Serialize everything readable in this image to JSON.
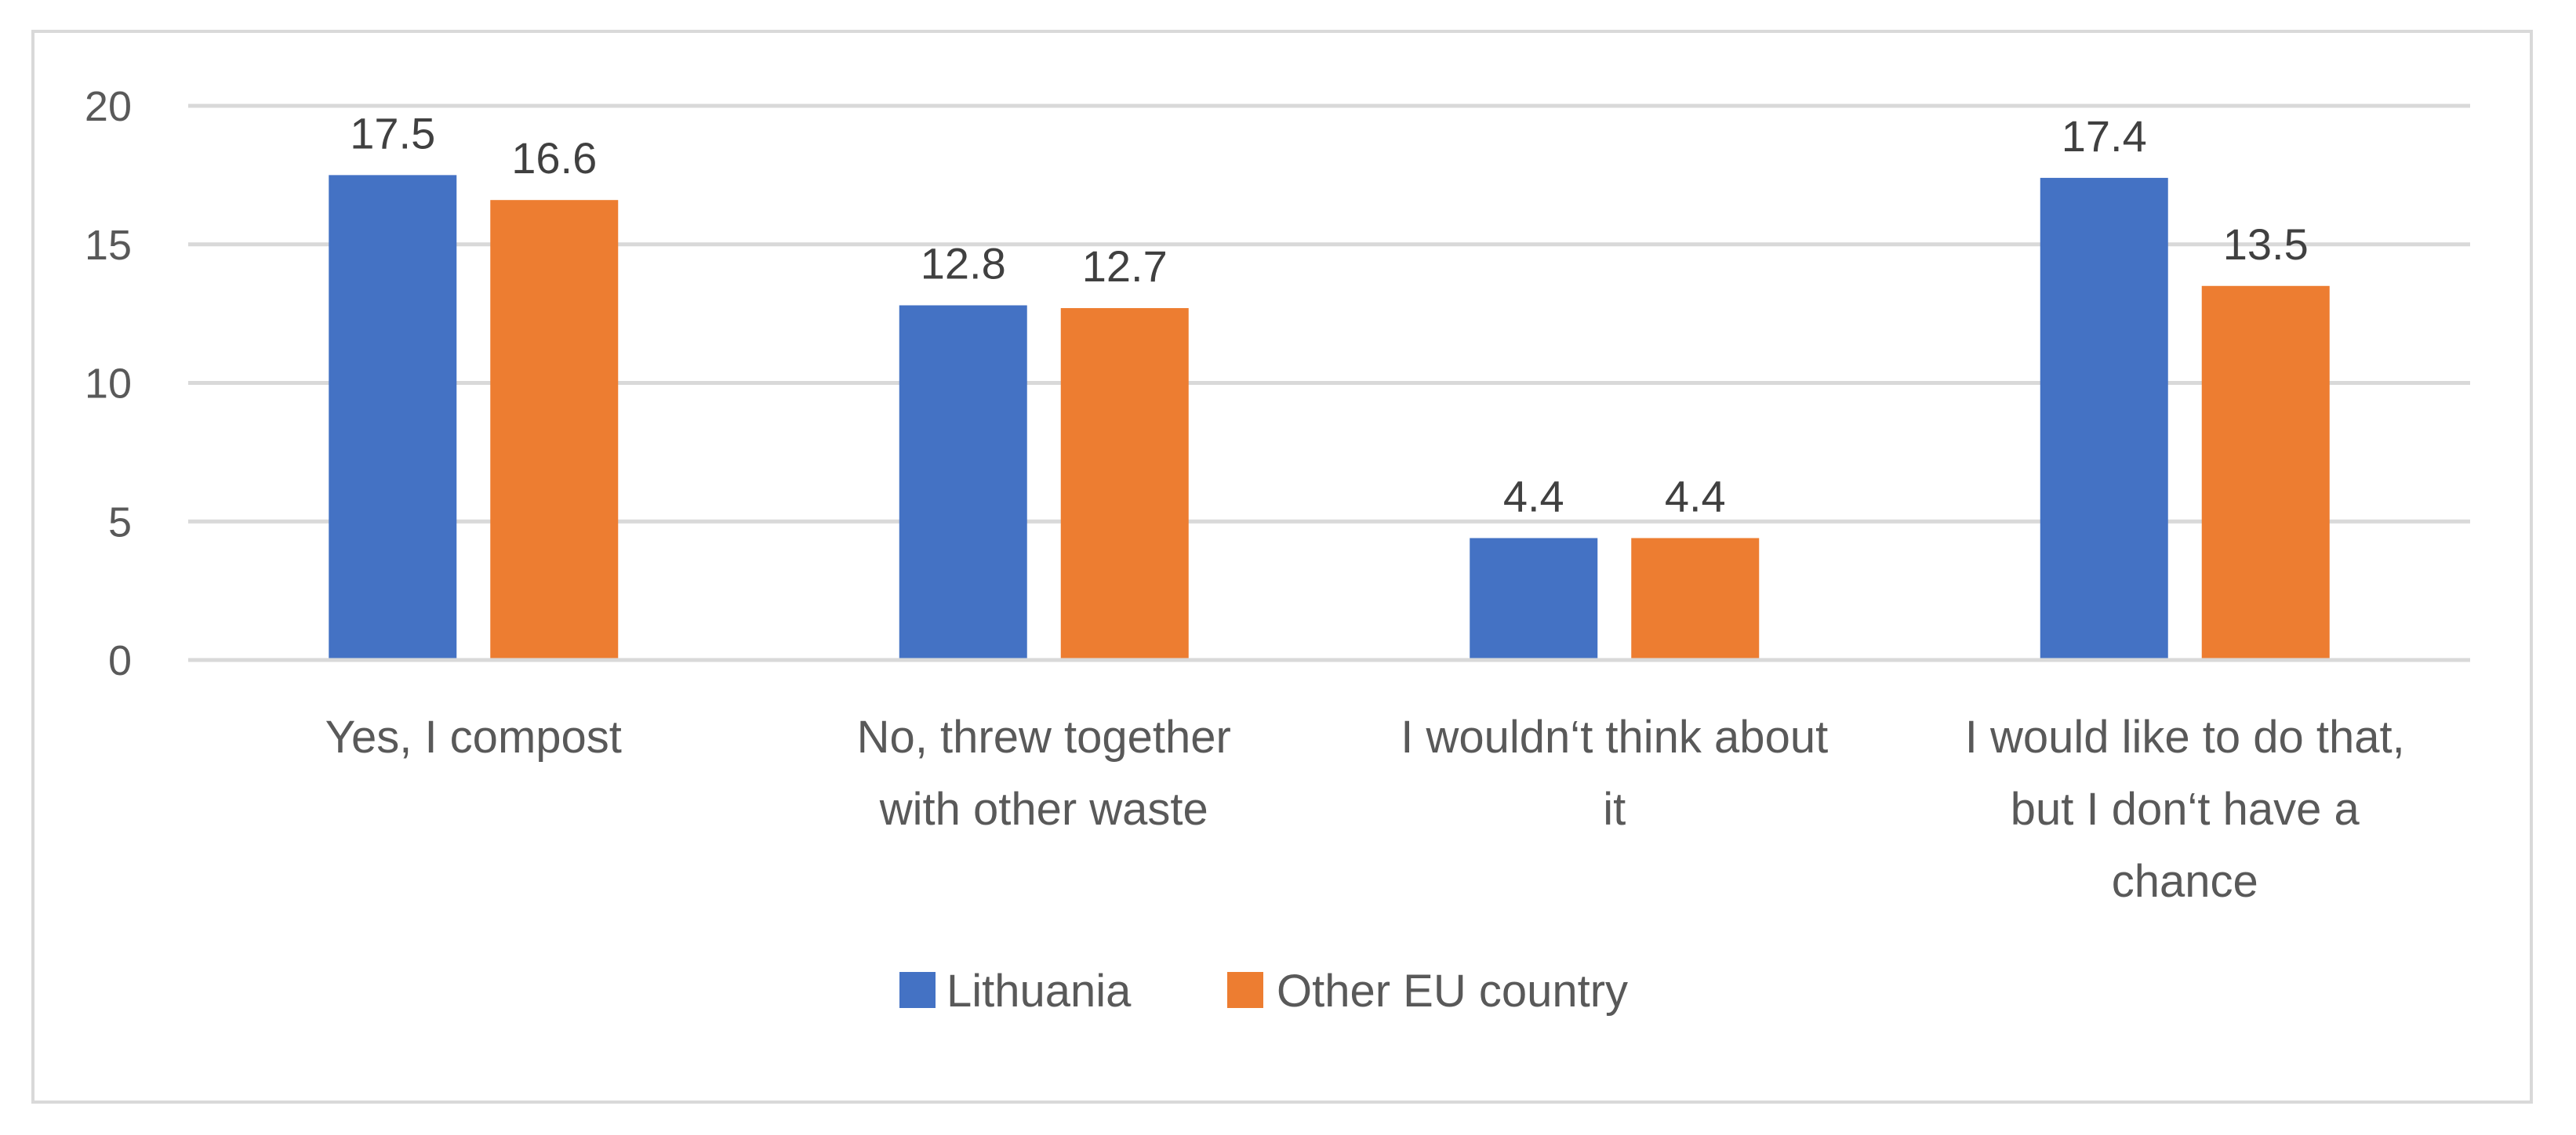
{
  "chart_data": {
    "type": "bar",
    "categories": [
      [
        "Yes, I compost"
      ],
      [
        "No, threw together",
        "with other waste"
      ],
      [
        "I wouldn‘t think about",
        "it"
      ],
      [
        "I would like to do that,",
        "but I don‘t have a",
        "chance"
      ]
    ],
    "series": [
      {
        "name": "Lithuania",
        "color": "#4472C4",
        "values": [
          17.5,
          12.8,
          4.4,
          17.4
        ]
      },
      {
        "name": "Other EU country",
        "color": "#ED7D31",
        "values": [
          16.6,
          12.7,
          4.4,
          13.5
        ]
      }
    ],
    "ylim": [
      0,
      20
    ],
    "yticks": [
      0,
      5,
      10,
      15,
      20
    ],
    "grid": true,
    "legend": "bottom",
    "data_labels": [
      [
        "17.5",
        "12.8",
        "4.4",
        "17.4"
      ],
      [
        "16.6",
        "12.7",
        "4.4",
        "13.5"
      ]
    ]
  }
}
